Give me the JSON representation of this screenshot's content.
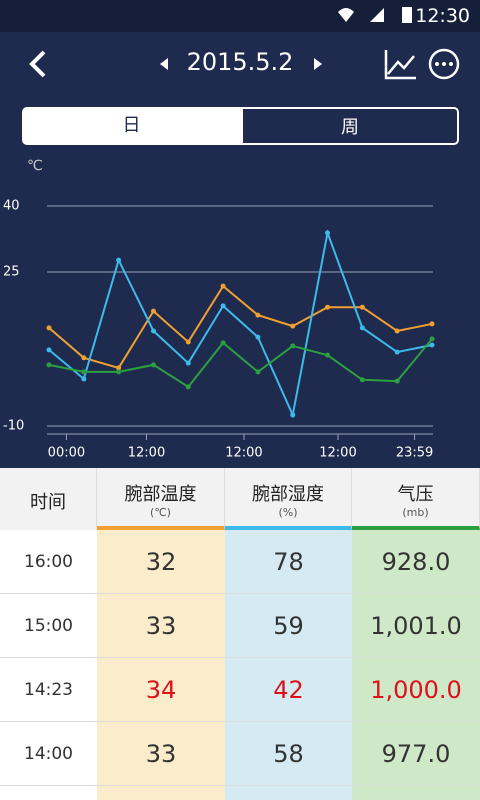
{
  "status": {
    "time": "12:30"
  },
  "header": {
    "date": "2015.5.2"
  },
  "tabs": [
    "日",
    "周"
  ],
  "chart_data": {
    "type": "line",
    "ylabel": "℃",
    "x": [
      0,
      1,
      2,
      3,
      4,
      5,
      6,
      7,
      8,
      9,
      10,
      11
    ],
    "xlim": [
      0,
      11
    ],
    "xticks": [
      {
        "value": 0.5,
        "label": "00:00"
      },
      {
        "value": 2.8,
        "label": "12:00"
      },
      {
        "value": 5.6,
        "label": "12:00"
      },
      {
        "value": 8.3,
        "label": "12:00"
      },
      {
        "value": 10.5,
        "label": "23:59"
      }
    ],
    "ylim": [
      -10,
      40
    ],
    "yticks": [
      40,
      25,
      -10
    ],
    "grid": true,
    "series": [
      {
        "color": "#f0a030",
        "values": [
          12.3,
          5.5,
          3.2,
          16.1,
          9.1,
          21.8,
          15.2,
          12.7,
          17.0,
          17.0,
          11.6,
          13.2
        ]
      },
      {
        "color": "#3cbbea",
        "values": [
          7.3,
          0.7,
          27.7,
          11.6,
          4.3,
          17.3,
          10.2,
          -7.5,
          33.9,
          12.3,
          6.8,
          8.4
        ]
      },
      {
        "color": "#2ca040",
        "values": [
          3.9,
          2.3,
          2.3,
          3.9,
          -1.1,
          8.9,
          2.3,
          8.2,
          6.1,
          0.5,
          0.2,
          9.8
        ]
      }
    ]
  },
  "table": {
    "columns": [
      {
        "name": "时间"
      },
      {
        "name": "腕部温度",
        "unit": "(℃)",
        "color": "#f0a030",
        "bg": "#fbeccc"
      },
      {
        "name": "腕部湿度",
        "unit": "(%)",
        "color": "#3cbbea",
        "bg": "#d5eaf2"
      },
      {
        "name": "气压",
        "unit": "(mb)",
        "color": "#2ca040",
        "bg": "#cfe8c8"
      }
    ],
    "rows": [
      [
        "16:00",
        "32",
        "78",
        "928.0"
      ],
      [
        "15:00",
        "33",
        "59",
        "1,001.0"
      ],
      [
        "14:23",
        "34",
        "42",
        "1,000.0"
      ],
      [
        "14:00",
        "33",
        "58",
        "977.0"
      ]
    ],
    "alert_row": 2
  }
}
